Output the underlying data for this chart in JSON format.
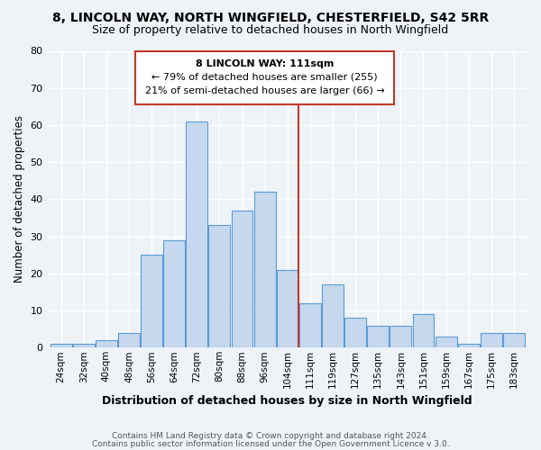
{
  "title": "8, LINCOLN WAY, NORTH WINGFIELD, CHESTERFIELD, S42 5RR",
  "subtitle": "Size of property relative to detached houses in North Wingfield",
  "xlabel": "Distribution of detached houses by size in North Wingfield",
  "ylabel": "Number of detached properties",
  "bar_labels": [
    "24sqm",
    "32sqm",
    "40sqm",
    "48sqm",
    "56sqm",
    "64sqm",
    "72sqm",
    "80sqm",
    "88sqm",
    "96sqm",
    "104sqm",
    "111sqm",
    "119sqm",
    "127sqm",
    "135sqm",
    "143sqm",
    "151sqm",
    "159sqm",
    "167sqm",
    "175sqm",
    "183sqm"
  ],
  "bar_values": [
    1,
    1,
    2,
    4,
    25,
    29,
    61,
    33,
    37,
    42,
    21,
    12,
    17,
    8,
    6,
    6,
    9,
    3,
    1,
    4,
    4
  ],
  "bar_color": "#c5d8ed",
  "bar_edge_color": "#5b9bd5",
  "bg_color": "#eef3f8",
  "grid_color": "#ffffff",
  "vline_color": "#c0392b",
  "annotation_title": "8 LINCOLN WAY: 111sqm",
  "annotation_line1": "← 79% of detached houses are smaller (255)",
  "annotation_line2": "21% of semi-detached houses are larger (66) →",
  "annotation_box_color": "#c0392b",
  "footer1": "Contains HM Land Registry data © Crown copyright and database right 2024.",
  "footer2": "Contains public sector information licensed under the Open Government Licence v 3.0.",
  "ylim": [
    0,
    80
  ],
  "yticks": [
    0,
    10,
    20,
    30,
    40,
    50,
    60,
    70,
    80
  ]
}
